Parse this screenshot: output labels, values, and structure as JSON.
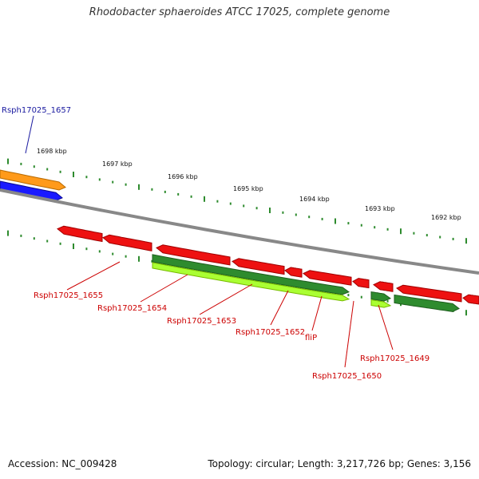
{
  "title": "Rhodobacter sphaeroides ATCC 17025, complete genome",
  "footer": {
    "accession": "Accession: NC_009428",
    "summary": "Topology: circular; Length: 3,217,726 bp; Genes: 3,156"
  },
  "colors": {
    "background": "#ffffff",
    "backbone": "#888888",
    "tick": "#2e8b2e",
    "orange_gene": "#ff9a1a",
    "blue_gene": "#1a1aff",
    "red_gene": "#ee1111",
    "dark_green_gene": "#2e8b2e",
    "lime_gene": "#aaff33",
    "blue_label": "#1a1aa0",
    "red_label": "#cc0000"
  },
  "scale_labels": [
    "1698 kbp",
    "1697 kbp",
    "1696 kbp",
    "1695 kbp",
    "1694 kbp",
    "1693 kbp",
    "1692 kbp"
  ],
  "gene_labels": [
    {
      "text": "Rsph17025_1657",
      "color": "blue"
    },
    {
      "text": "Rsph17025_1655",
      "color": "red"
    },
    {
      "text": "Rsph17025_1654",
      "color": "red"
    },
    {
      "text": "Rsph17025_1653",
      "color": "red"
    },
    {
      "text": "Rsph17025_1652",
      "color": "red"
    },
    {
      "text": "fliP",
      "color": "red"
    },
    {
      "text": "Rsph17025_1650",
      "color": "red"
    },
    {
      "text": "Rsph17025_1649",
      "color": "red"
    }
  ]
}
